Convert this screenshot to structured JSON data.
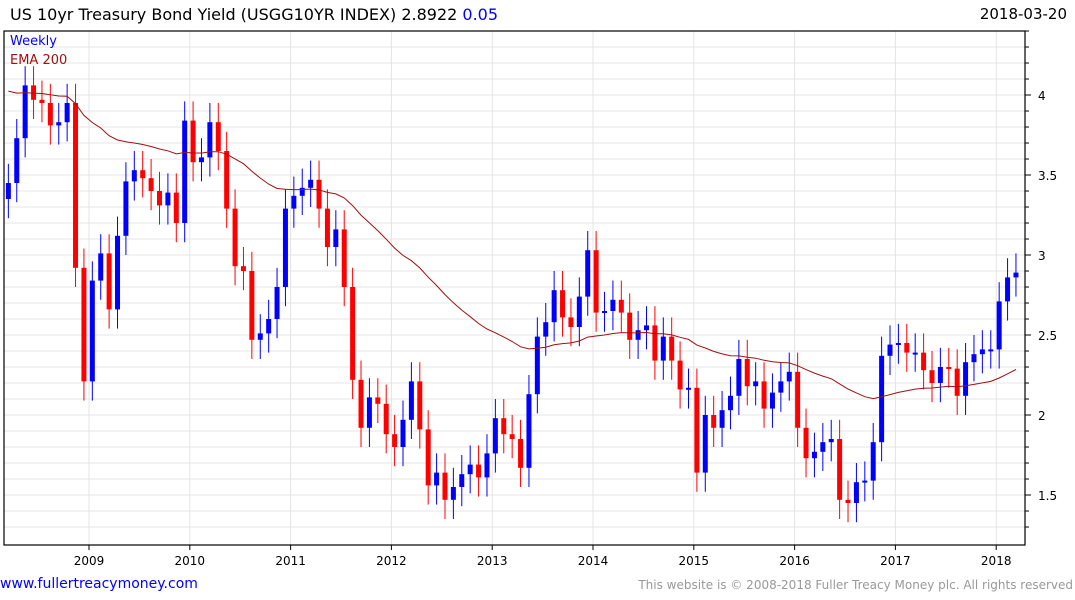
{
  "header": {
    "title": "US 10yr Treasury Bond Yield (USGG10YR INDEX) 2.8922",
    "change": "0.05",
    "date": "2018-03-20"
  },
  "footer": {
    "site": "www.fullertreacymoney.com",
    "copyright": "This website is © 2008-2018 Fuller Treacy Money plc. All rights reserved"
  },
  "colors": {
    "up": "#0000ff",
    "down": "#ff0000",
    "ema": "#a01010"
  },
  "chart_data": {
    "type": "line",
    "title": "US 10yr Treasury Bond Yield (USGG10YR INDEX)",
    "legend": [
      "Weekly",
      "EMA 200"
    ],
    "legend_position": "top-left",
    "ylim": [
      1.25,
      4.45
    ],
    "yticks": [
      "1.5",
      "2",
      "2.5",
      "3",
      "3.5",
      "4"
    ],
    "xticks": [
      "2009",
      "2010",
      "2011",
      "2012",
      "2013",
      "2014",
      "2015",
      "2016",
      "2017",
      "2018"
    ],
    "xrange": [
      2008.2,
      2018.22
    ],
    "start": 2008.2,
    "step_years": 0.0833,
    "closes": [
      3.45,
      3.73,
      4.06,
      3.97,
      3.95,
      3.81,
      3.83,
      3.95,
      2.92,
      2.21,
      2.84,
      3.01,
      2.66,
      3.12,
      3.46,
      3.53,
      3.48,
      3.4,
      3.31,
      3.39,
      3.2,
      3.84,
      3.58,
      3.61,
      3.83,
      3.65,
      3.29,
      2.93,
      2.9,
      2.47,
      2.51,
      2.6,
      2.8,
      3.29,
      3.37,
      3.42,
      3.47,
      3.29,
      3.05,
      3.16,
      2.8,
      2.22,
      1.92,
      2.11,
      2.07,
      1.88,
      1.8,
      1.97,
      2.21,
      1.91,
      1.56,
      1.64,
      1.47,
      1.55,
      1.63,
      1.69,
      1.61,
      1.76,
      1.98,
      1.88,
      1.85,
      1.67,
      2.13,
      2.49,
      2.58,
      2.78,
      2.61,
      2.55,
      2.74,
      3.03,
      2.64,
      2.65,
      2.72,
      2.64,
      2.47,
      2.53,
      2.56,
      2.34,
      2.49,
      2.34,
      2.16,
      2.17,
      1.64,
      2.0,
      1.92,
      2.03,
      2.12,
      2.35,
      2.18,
      2.21,
      2.04,
      2.14,
      2.21,
      2.27,
      1.92,
      1.73,
      1.77,
      1.83,
      1.85,
      1.47,
      1.45,
      1.58,
      1.59,
      1.83,
      2.37,
      2.44,
      2.45,
      2.39,
      2.39,
      2.28,
      2.2,
      2.3,
      2.29,
      2.12,
      2.33,
      2.38,
      2.41,
      2.41,
      2.71,
      2.86,
      2.89
    ],
    "ema_period": 46,
    "ema_start": 4.05
  }
}
